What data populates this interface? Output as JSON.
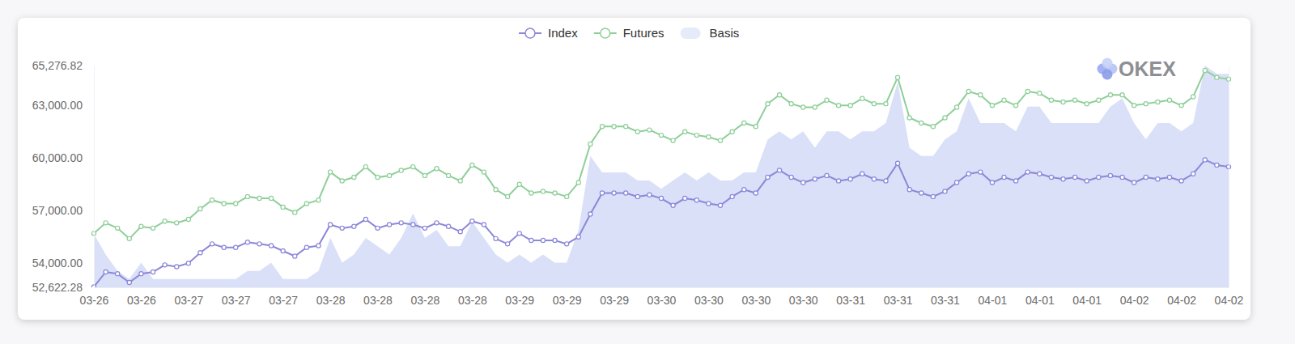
{
  "chart_data": {
    "type": "line",
    "annotations": [
      "OKEX"
    ],
    "categories": [
      "03-26",
      null,
      null,
      null,
      "03-26",
      null,
      null,
      null,
      "03-27",
      null,
      null,
      null,
      "03-27",
      null,
      null,
      null,
      "03-27",
      null,
      null,
      null,
      "03-28",
      null,
      null,
      null,
      "03-28",
      null,
      null,
      null,
      "03-28",
      null,
      null,
      null,
      "03-28",
      null,
      null,
      null,
      "03-29",
      null,
      null,
      null,
      "03-29",
      null,
      null,
      null,
      "03-29",
      null,
      null,
      null,
      "03-30",
      null,
      null,
      null,
      "03-30",
      null,
      null,
      null,
      "03-30",
      null,
      null,
      null,
      "03-30",
      null,
      null,
      null,
      "03-31",
      null,
      null,
      null,
      "03-31",
      null,
      null,
      null,
      "03-31",
      null,
      null,
      null,
      "04-01",
      null,
      null,
      null,
      "04-01",
      null,
      null,
      null,
      "04-01",
      null,
      null,
      null,
      "04-02",
      null,
      null,
      null,
      "04-02",
      null,
      null,
      null,
      "04-02"
    ],
    "series": [
      {
        "name": "Index",
        "type": "line",
        "color": "#8c87d8",
        "marker": "circle",
        "values": [
          52650,
          53500,
          53400,
          52900,
          53400,
          53500,
          53900,
          53800,
          54000,
          54600,
          55100,
          54900,
          54900,
          55200,
          55100,
          55000,
          54700,
          54400,
          54900,
          55000,
          56200,
          56000,
          56100,
          56500,
          56000,
          56200,
          56300,
          56200,
          56000,
          56300,
          56100,
          55800,
          56400,
          56200,
          55400,
          55100,
          55700,
          55300,
          55300,
          55300,
          55100,
          55500,
          56800,
          58000,
          58000,
          58000,
          57800,
          57900,
          57700,
          57300,
          57700,
          57600,
          57400,
          57300,
          57800,
          58200,
          58000,
          58900,
          59300,
          58900,
          58600,
          58800,
          59000,
          58700,
          58800,
          59100,
          58800,
          58700,
          59700,
          58200,
          58000,
          57800,
          58100,
          58600,
          59100,
          59200,
          58600,
          58900,
          58700,
          59200,
          59100,
          58900,
          58800,
          58900,
          58700,
          58900,
          59000,
          58900,
          58600,
          58900,
          58800,
          58900,
          58700,
          59100,
          59900,
          59600,
          59500
        ]
      },
      {
        "name": "Futures",
        "type": "line",
        "color": "#8ecf99",
        "marker": "circle",
        "values": [
          55700,
          56300,
          56000,
          55400,
          56100,
          56000,
          56400,
          56300,
          56500,
          57100,
          57600,
          57400,
          57400,
          57800,
          57700,
          57700,
          57200,
          56900,
          57400,
          57600,
          59200,
          58700,
          58900,
          59500,
          58900,
          59000,
          59300,
          59500,
          59000,
          59400,
          59000,
          58700,
          59600,
          59200,
          58200,
          57800,
          58500,
          58000,
          58100,
          58000,
          57800,
          58600,
          60800,
          61800,
          61800,
          61800,
          61500,
          61600,
          61300,
          61000,
          61500,
          61300,
          61200,
          61000,
          61500,
          62000,
          61800,
          63100,
          63600,
          63100,
          62900,
          62900,
          63300,
          63000,
          63000,
          63400,
          63100,
          63100,
          64600,
          62300,
          62000,
          61800,
          62300,
          62900,
          63800,
          63600,
          63000,
          63300,
          63000,
          63800,
          63700,
          63300,
          63200,
          63300,
          63100,
          63300,
          63600,
          63600,
          63000,
          63100,
          63200,
          63300,
          63000,
          63500,
          65000,
          64600,
          64500
        ]
      },
      {
        "name": "Basis",
        "type": "area",
        "color": "#d5ddf7",
        "axis": "y2",
        "values": [
          3050,
          2800,
          2600,
          2500,
          2700,
          2500,
          2500,
          2500,
          2500,
          2500,
          2500,
          2500,
          2500,
          2600,
          2600,
          2700,
          2500,
          2500,
          2500,
          2600,
          3000,
          2700,
          2800,
          3000,
          2900,
          2800,
          3000,
          3300,
          3000,
          3100,
          2900,
          2900,
          3200,
          3000,
          2800,
          2700,
          2800,
          2700,
          2800,
          2700,
          2700,
          3100,
          4000,
          3800,
          3800,
          3800,
          3700,
          3700,
          3600,
          3700,
          3800,
          3700,
          3800,
          3700,
          3700,
          3800,
          3800,
          4200,
          4300,
          4200,
          4300,
          4100,
          4300,
          4300,
          4200,
          4300,
          4300,
          4400,
          4900,
          4100,
          4000,
          4000,
          4200,
          4300,
          4700,
          4400,
          4400,
          4400,
          4300,
          4600,
          4600,
          4400,
          4400,
          4400,
          4400,
          4400,
          4600,
          4700,
          4400,
          4200,
          4400,
          4400,
          4300,
          4400,
          5100,
          5000,
          5000
        ]
      }
    ],
    "ylim": [
      52622.28,
      65276.82
    ],
    "yticks": [
      {
        "value": 52622.28,
        "label": "52,622.28"
      },
      {
        "value": 54000,
        "label": "54,000.00"
      },
      {
        "value": 57000,
        "label": "57,000.00"
      },
      {
        "value": 60000,
        "label": "60,000.00"
      },
      {
        "value": 63000,
        "label": "63,000.00"
      },
      {
        "value": 65276.82,
        "label": "65,276.82"
      }
    ],
    "y2lim": [
      2400,
      5100
    ],
    "y2ticks": [],
    "grid": false,
    "legend": "top"
  }
}
